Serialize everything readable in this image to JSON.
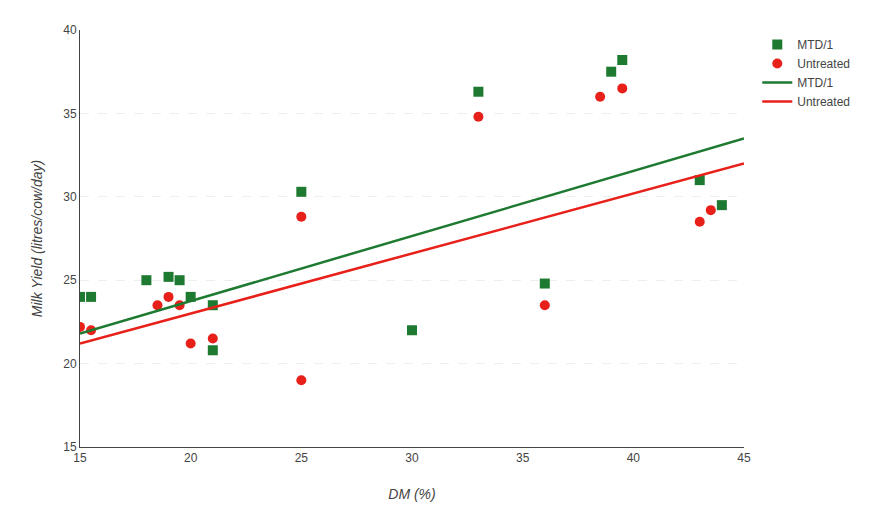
{
  "chart_data": {
    "type": "scatter",
    "xlabel": "DM (%)",
    "ylabel": "Milk Yield (litres/cow/day)",
    "series": [
      {
        "name": "MTD/1",
        "type": "scatter",
        "marker": "square",
        "color": "#1e7a30",
        "x": [
          15,
          15.5,
          18,
          19,
          19.5,
          20,
          21,
          21,
          25,
          30,
          33,
          36,
          39,
          39.5,
          43,
          44
        ],
        "values": [
          24,
          24,
          25,
          25.2,
          25,
          24,
          23.5,
          20.8,
          30.3,
          22,
          36.3,
          24.8,
          37.5,
          38.2,
          31,
          29.5
        ]
      },
      {
        "name": "Untreated",
        "type": "scatter",
        "marker": "circle",
        "color": "#e8201a",
        "x": [
          15,
          15.5,
          18.5,
          19,
          19.5,
          20,
          21,
          25,
          25,
          33,
          36,
          38.5,
          39.5,
          43,
          43.5
        ],
        "values": [
          22.2,
          22,
          23.5,
          24,
          23.5,
          21.2,
          21.5,
          19,
          28.8,
          34.8,
          23.5,
          36,
          36.5,
          28.5,
          29.2
        ]
      },
      {
        "name": "MTD/1",
        "type": "line",
        "line_style": "solid",
        "color": "#1e7a30",
        "x": [
          15,
          45
        ],
        "values": [
          21.8,
          33.5
        ]
      },
      {
        "name": "Untreated",
        "type": "line",
        "line_style": "solid",
        "color": "#e8201a",
        "x": [
          15,
          45
        ],
        "values": [
          21.2,
          32.0
        ]
      }
    ],
    "xlim": [
      15,
      45
    ],
    "ylim": [
      15,
      40
    ],
    "xticks": [
      15,
      20,
      25,
      30,
      35,
      40,
      45
    ],
    "yticks": [
      15,
      20,
      25,
      30,
      35,
      40
    ],
    "grid": "y",
    "legend": "right"
  }
}
